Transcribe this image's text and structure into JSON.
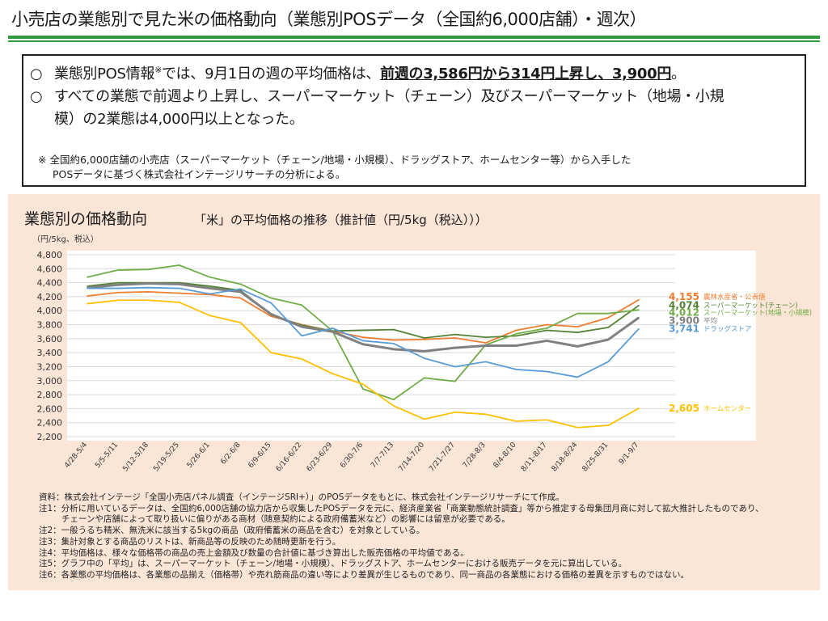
{
  "page": {
    "title": "小売店の業態別で見た米の価格動向（業態別POSデータ（全国約6,000店舗）・週次）"
  },
  "summary": {
    "b1_mark": "○",
    "b1_pre": "業態別POS情報",
    "b1_sup": "※",
    "b1_mid": "では、9月1日の週の平均価格は、",
    "b1_emph": "前週の3,586円から314円上昇し、3,900円",
    "b1_end": "。",
    "b2_mark": "○",
    "b2_line1": "すべての業態で前週より上昇し、スーパーマーケット（チェーン）及びスーパーマーケット（地場・小規",
    "b2_line2": "模）の2業態は4,000円以上となった。",
    "note_line1": "※ 全国約6,000店舗の小売店（スーパーマーケット（チェーン/地場・小規模）、ドラッグストア、ホームセンター等）から入手した",
    "note_line2": "POSデータに基づく株式会社インテージリサーチの分析による。"
  },
  "panel": {
    "title": "業態別の価格動向",
    "subtitle": "「米」の平均価格の推移（推計値（円/5kg（税込）））"
  },
  "chart_data": {
    "type": "line",
    "ylabel": "（円/5kg、税込）",
    "ylim": [
      2200,
      4800
    ],
    "yticks": [
      2200,
      2400,
      2600,
      2800,
      3000,
      3200,
      3400,
      3600,
      3800,
      4000,
      4200,
      4400,
      4600,
      4800
    ],
    "grid": true,
    "legend": "right-end labels",
    "categories": [
      "4/28-5/4",
      "5/5-5/11",
      "5/12-5/18",
      "5/19-5/25",
      "5/26-6/1",
      "6/2-6/8",
      "6/9-6/15",
      "6/16-6/22",
      "6/23-6/29",
      "6/30-7/6",
      "7/7-7/13",
      "7/14-7/20",
      "7/21-7/27",
      "7/28-8/3",
      "8/4-8/10",
      "8/11-8/17",
      "8/18-8/24",
      "8/25-8/31",
      "9/1-9/7"
    ],
    "series": [
      {
        "name": "農林水産省・公表値",
        "end_label": "4,155",
        "color": "#ed7d31",
        "values": [
          4210,
          4260,
          4270,
          4250,
          4230,
          4180,
          3920,
          3800,
          3710,
          3620,
          3580,
          3590,
          3610,
          3540,
          3720,
          3800,
          3770,
          3900,
          4155
        ]
      },
      {
        "name": "スーパーマーケット(チェーン)",
        "end_label": "4,074",
        "color": "#548235",
        "values": [
          4350,
          4400,
          4400,
          4400,
          4350,
          4290,
          3940,
          3790,
          3710,
          3720,
          3730,
          3610,
          3660,
          3620,
          3640,
          3720,
          3690,
          3760,
          4074
        ]
      },
      {
        "name": "スーパーマーケット(地場・小規模)",
        "end_label": "4,012",
        "color": "#70ad47",
        "values": [
          4480,
          4580,
          4590,
          4650,
          4480,
          4380,
          4180,
          4080,
          3710,
          2880,
          2730,
          3040,
          2990,
          3510,
          3670,
          3750,
          3960,
          3960,
          4012
        ]
      },
      {
        "name": "平均",
        "end_label": "3,900",
        "color": "#808080",
        "values": [
          4330,
          4370,
          4390,
          4380,
          4320,
          4270,
          3950,
          3770,
          3700,
          3520,
          3450,
          3420,
          3470,
          3500,
          3500,
          3570,
          3490,
          3586,
          3900
        ]
      },
      {
        "name": "ドラッグストア",
        "end_label": "3,741",
        "color": "#5b9bd5",
        "values": [
          4320,
          4320,
          4330,
          4320,
          4240,
          4310,
          4110,
          3640,
          3750,
          3570,
          3530,
          3320,
          3200,
          3270,
          3160,
          3130,
          3050,
          3270,
          3741
        ]
      },
      {
        "name": "ホームセンター",
        "end_label": "2,605",
        "color": "#ffc000",
        "values": [
          4100,
          4150,
          4150,
          4120,
          3930,
          3830,
          3400,
          3310,
          3100,
          2950,
          2640,
          2450,
          2550,
          2520,
          2420,
          2440,
          2330,
          2360,
          2605
        ]
      }
    ]
  },
  "footnotes": [
    "資料：株式会社インテージ「全国小売店パネル調査（インテージSRI+）」のPOSデータをもとに、株式会社インテージリサーチにて作成。",
    "注1：分析に用いているデータは、全国約6,000店舗の協力店から収集したPOSデータを元に、経済産業省「商業動態統計調査」等から推定する母集団月商に対して拡大推計したものであり、",
    "チェーンや店舗によって取り扱いに偏りがある商材（随意契約による政府備蓄米など）の影響には留意が必要である。",
    "注2：一般うるち精米、無洗米に該当する5kgの商品（政府備蓄米の商品を含む）を対象としている。",
    "注3：集計対象とする商品のリストは、新商品等の反映のため随時更新を行う。",
    "注4：平均価格は、様々な価格帯の商品の売上金額及び数量の合計値に基づき算出した販売価格の平均値である。",
    "注5：グラフ中の「平均」は、スーパーマーケット（チェーン/地場・小規模）、ドラッグストア、ホームセンターにおける販売データを元に算出している。",
    "注6：各業態の平均価格は、各業態の品揃え（価格帯）や売れ筋商品の違い等により差異が生じるものであり、同一商品の各業態における価格の差異を示すものではない。"
  ]
}
